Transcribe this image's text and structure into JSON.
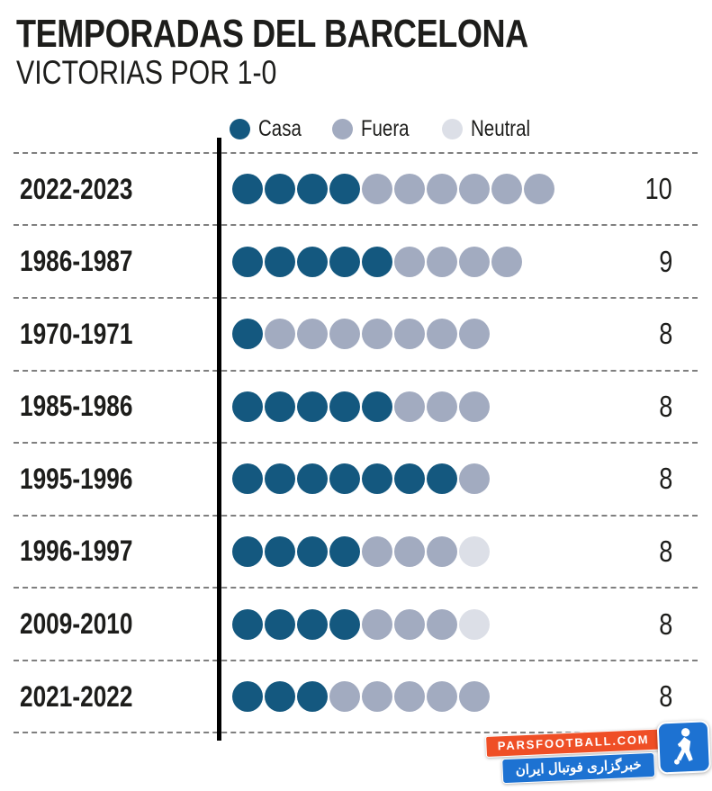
{
  "header": {
    "title": "TEMPORADAS DEL BARCELONA",
    "subtitle": "VICTORIAS POR 1-0"
  },
  "chart_data": {
    "type": "bar",
    "variant": "dot-pictogram",
    "title": "TEMPORADAS DEL BARCELONA",
    "subtitle": "VICTORIAS POR 1-0",
    "categories": [
      "2022-2023",
      "1986-1987",
      "1970-1971",
      "1985-1986",
      "1995-1996",
      "1996-1997",
      "2009-2010",
      "2021-2022"
    ],
    "series": [
      {
        "name": "Casa",
        "color": "#14587f",
        "values": [
          4,
          5,
          1,
          5,
          7,
          4,
          4,
          3
        ]
      },
      {
        "name": "Fuera",
        "color": "#a2abc0",
        "values": [
          6,
          4,
          7,
          3,
          1,
          3,
          3,
          5
        ]
      },
      {
        "name": "Neutral",
        "color": "#dcdfe7",
        "values": [
          0,
          0,
          0,
          0,
          0,
          1,
          1,
          0
        ]
      }
    ],
    "totals": [
      10,
      9,
      8,
      8,
      8,
      8,
      8,
      8
    ],
    "legend_position": "top",
    "grid": "dashed-horizontal-separators",
    "axis_line_color": "#000000",
    "separator_color": "#7f7f7f"
  },
  "watermark": {
    "site": "PARSFOOTBALL.COM",
    "tagline": "خبرگزاری فوتبال ایران",
    "orange_color": "#ef4f26",
    "blue_color": "#1d72d2"
  }
}
